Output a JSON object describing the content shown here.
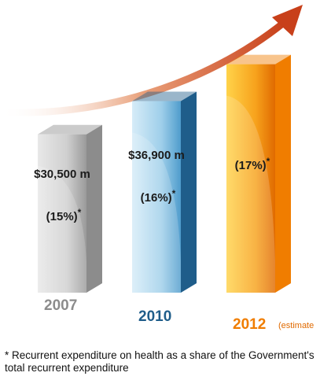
{
  "chart_data": {
    "type": "bar3d",
    "categories": [
      "2007",
      "2010",
      "2012"
    ],
    "values": [
      30500,
      36900,
      44000
    ],
    "value_labels": [
      "$30,500 m",
      "$36,900 m",
      null
    ],
    "shares": [
      15,
      16,
      17
    ],
    "share_labels": [
      "(15%)",
      "(16%)",
      "(17%)"
    ],
    "colors": [
      "#8c8c8c",
      "#1f5d8a",
      "#f07d00"
    ],
    "ylim": [
      0,
      50000
    ],
    "annotation": "(estimate",
    "footnote_marker": "*",
    "footnote": "Recurrent expenditure on health as a share of the Government's total recurrent expenditure"
  }
}
